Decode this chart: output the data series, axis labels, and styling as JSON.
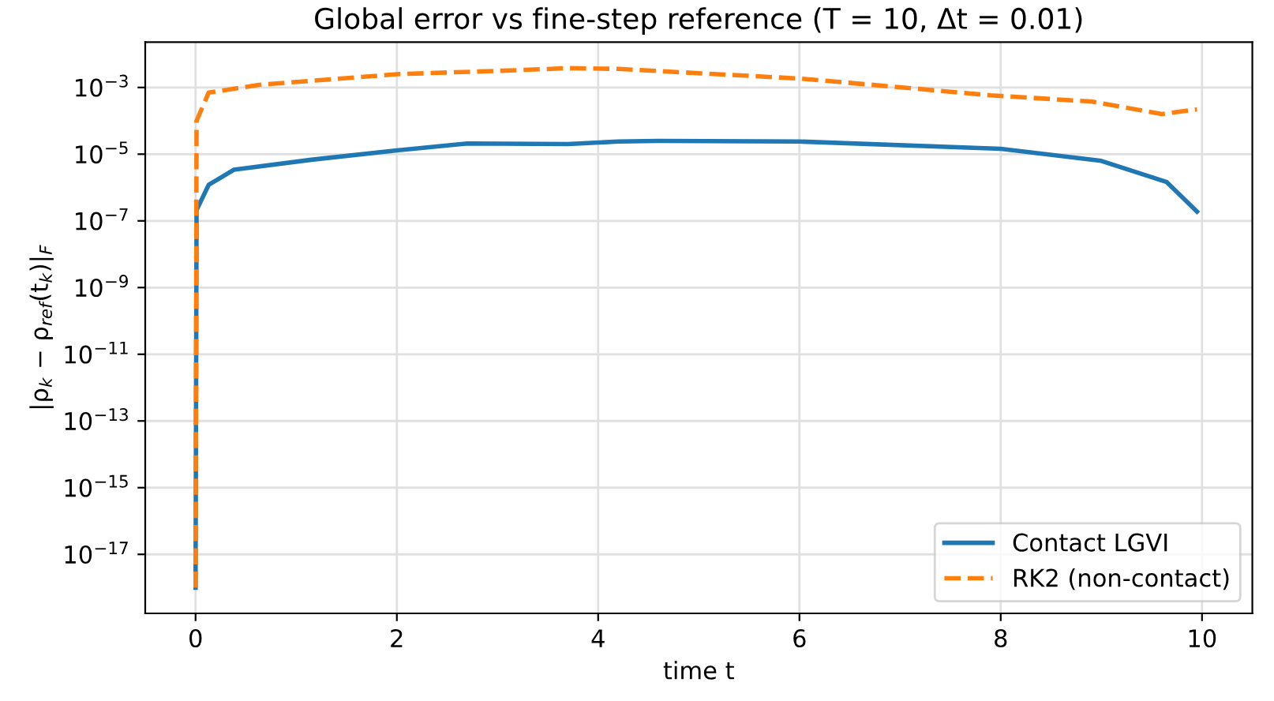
{
  "chart_data": {
    "type": "line",
    "title": "Global error vs fine-step reference (T = 10, Δt = 0.01)",
    "xlabel": "time t",
    "ylabel": "|ρ$_{k}$ − ρ$_{ref}$(t$_{k}$)|$_{F}$",
    "series": [
      {
        "name": "Contact LGVI",
        "color": "#1f77b4",
        "line_style": "solid",
        "x": [
          0,
          0.01,
          0.13,
          0.38,
          1.15,
          2,
          2.7,
          3.7,
          4.2,
          4.6,
          6,
          8,
          9,
          9.65,
          9.95
        ],
        "values": [
          1e-18,
          2.1e-07,
          1.2e-06,
          3.4e-06,
          6.8e-06,
          1.3e-05,
          2.1e-05,
          2e-05,
          2.4e-05,
          2.5e-05,
          2.4e-05,
          1.45e-05,
          6.3e-06,
          1.45e-06,
          1.9e-07
        ]
      },
      {
        "name": "RK2 (non-contact)",
        "color": "#ff7f0e",
        "line_style": "dashed",
        "x": [
          0,
          0.01,
          0.13,
          0.63,
          2,
          3.2,
          3.7,
          4.2,
          6,
          6.9,
          7.9,
          8.9,
          9.6,
          9.95
        ],
        "values": [
          1e-18,
          0.0001,
          0.0007,
          0.0012,
          0.0025,
          0.0033,
          0.0038,
          0.0036,
          0.00185,
          0.00108,
          0.00058,
          0.00038,
          0.00016,
          0.00022
        ]
      }
    ],
    "log": "y",
    "xlim": [
      -0.5,
      10.5
    ],
    "ylim": [
      1.7e-19,
      0.023
    ],
    "xticks": [
      0,
      2,
      4,
      6,
      8,
      10
    ],
    "yticks": [
      {
        "value": 1e-17,
        "label": "10$^{−17}$"
      },
      {
        "value": 1e-15,
        "label": "10$^{−15}$"
      },
      {
        "value": 1e-13,
        "label": "10$^{−13}$"
      },
      {
        "value": 1e-11,
        "label": "10$^{−11}$"
      },
      {
        "value": 1e-09,
        "label": "10$^{−9}$"
      },
      {
        "value": 1e-07,
        "label": "10$^{−7}$"
      },
      {
        "value": 1e-05,
        "label": "10$^{−5}$"
      },
      {
        "value": 0.001,
        "label": "10$^{−3}$"
      }
    ],
    "grid": true,
    "legend": "bottom right",
    "marker": "none"
  }
}
